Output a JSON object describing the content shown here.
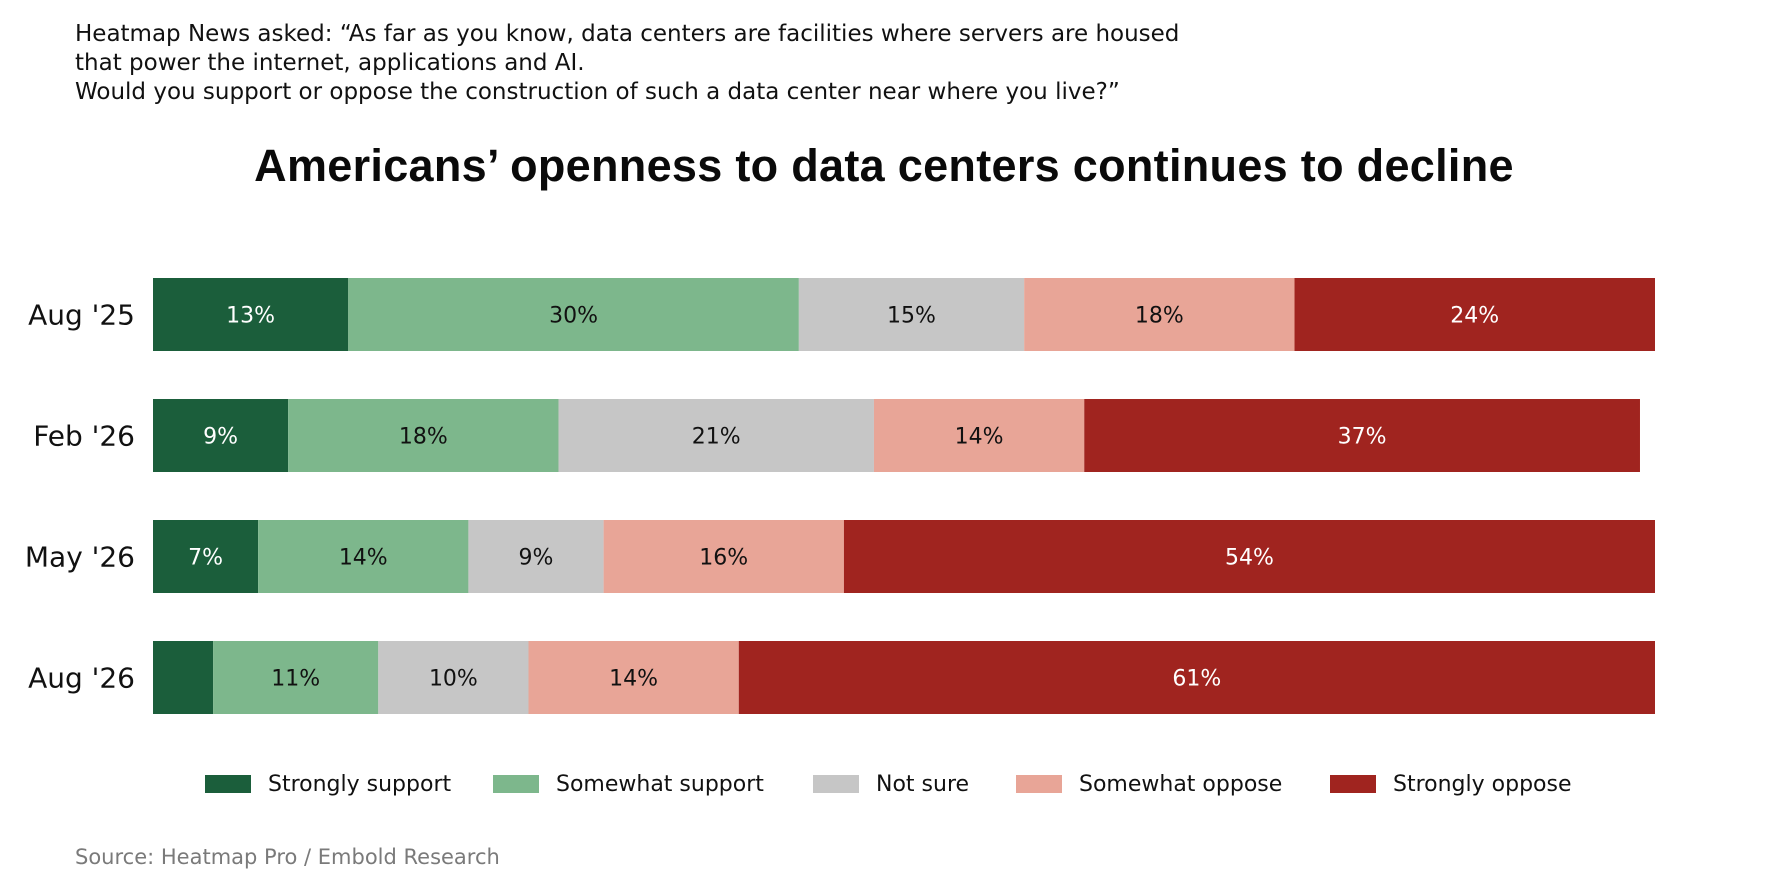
{
  "question": {
    "line1": "Heatmap News asked: “As far as you know, data centers are facilities where servers are housed",
    "line2": "that power the internet, applications and AI.",
    "line3": "Would you support or oppose the construction of such a data center near where you live?”"
  },
  "source": "Source: Heatmap Pro / Embold Research",
  "chart_data": {
    "type": "bar",
    "orientation": "horizontal",
    "stacked": true,
    "title": "Americans’ openness to data centers continues to decline",
    "categories": [
      "Aug '25",
      "Feb '26",
      "May '26",
      "Aug '26"
    ],
    "series": [
      {
        "name": "Strongly support",
        "color": "#1b5e3b",
        "label_color": "#ffffff",
        "values": [
          13,
          9,
          7,
          4
        ],
        "labels": [
          "13%",
          "9%",
          "7%",
          ""
        ]
      },
      {
        "name": "Somewhat support",
        "color": "#7db78c",
        "label_color": "#111111",
        "values": [
          30,
          18,
          14,
          11
        ],
        "labels": [
          "30%",
          "18%",
          "14%",
          "11%"
        ]
      },
      {
        "name": "Not sure",
        "color": "#c6c6c6",
        "label_color": "#111111",
        "values": [
          15,
          21,
          9,
          10
        ],
        "labels": [
          "15%",
          "21%",
          "9%",
          "10%"
        ]
      },
      {
        "name": "Somewhat oppose",
        "color": "#e8a597",
        "label_color": "#111111",
        "values": [
          18,
          14,
          16,
          14
        ],
        "labels": [
          "18%",
          "14%",
          "16%",
          "14%"
        ]
      },
      {
        "name": "Strongly oppose",
        "color": "#a0241f",
        "label_color": "#ffffff",
        "values": [
          24,
          37,
          54,
          61
        ],
        "labels": [
          "24%",
          "37%",
          "54%",
          "61%"
        ]
      }
    ],
    "xlim": [
      0,
      100
    ],
    "grid": false,
    "legend_position": "bottom"
  }
}
